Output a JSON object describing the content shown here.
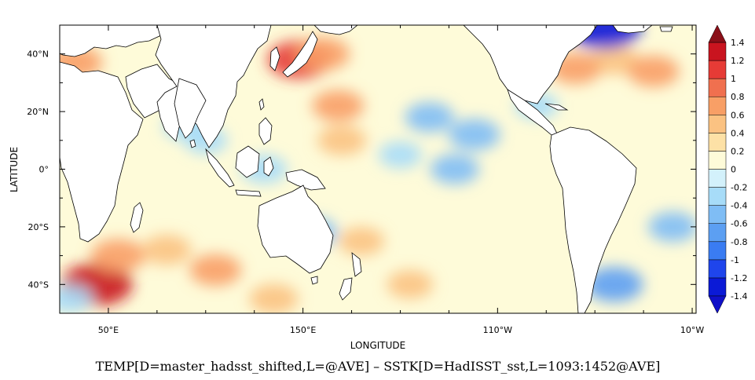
{
  "chart_data": {
    "type": "heatmap",
    "title": "TEMP[D=master_hadsst_shifted,L=@AVE] – SSTK[D=HadISST_sst,L=1093:1452@AVE]",
    "xlabel": "LONGITUDE",
    "ylabel": "LATITUDE",
    "x_ticks": [
      "50°E",
      "150°E",
      "110°W",
      "10°W"
    ],
    "y_ticks": [
      "40°N",
      "20°N",
      "0°",
      "20°S",
      "40°S"
    ],
    "x_tick_values": [
      50,
      150,
      250,
      350
    ],
    "y_tick_values": [
      40,
      20,
      0,
      -20,
      -40
    ],
    "xlim": [
      25,
      352
    ],
    "ylim": [
      -50,
      50
    ],
    "colorbar": {
      "levels": [
        -1.4,
        -1.2,
        -1,
        -0.8,
        -0.6,
        -0.4,
        -0.2,
        0,
        0.2,
        0.4,
        0.6,
        0.8,
        1,
        1.2,
        1.4
      ],
      "labels": [
        "1.4",
        "1.2",
        "1",
        "0.8",
        "0.6",
        "0.4",
        "0.2",
        "0",
        "-0.2",
        "-0.4",
        "-0.6",
        "-0.8",
        "-1",
        "-1.2",
        "-1.4"
      ],
      "colors": [
        "#0b1ad6",
        "#1f45ec",
        "#3a7cf2",
        "#5c9ff2",
        "#7fbdf5",
        "#a7dcf8",
        "#d3f1fb",
        "#fefbd9",
        "#fde1a6",
        "#fbc282",
        "#f89f66",
        "#f0704f",
        "#e63b36",
        "#c9141f"
      ],
      "under_color": "#1010c8",
      "over_color": "#8a0f18"
    },
    "anomalies": [
      {
        "lon": 148,
        "lat": 38,
        "value": 1.0
      },
      {
        "lon": 160,
        "lat": 40,
        "value": 0.7
      },
      {
        "lon": 168,
        "lat": 22,
        "value": 0.6
      },
      {
        "lon": 170,
        "lat": 10,
        "value": 0.5
      },
      {
        "lon": 310,
        "lat": 38,
        "value": 0.5
      },
      {
        "lon": 330,
        "lat": 34,
        "value": 0.6
      },
      {
        "lon": 290,
        "lat": 35,
        "value": 0.6
      },
      {
        "lon": 33,
        "lat": 37,
        "value": 0.7
      },
      {
        "lon": 44,
        "lat": -40,
        "value": 1.3
      },
      {
        "lon": 55,
        "lat": -30,
        "value": 0.7
      },
      {
        "lon": 80,
        "lat": -28,
        "value": 0.5
      },
      {
        "lon": 105,
        "lat": -35,
        "value": 0.6
      },
      {
        "lon": 135,
        "lat": -45,
        "value": 0.5
      },
      {
        "lon": 180,
        "lat": -25,
        "value": 0.4
      },
      {
        "lon": 205,
        "lat": -40,
        "value": 0.4
      },
      {
        "lon": 228,
        "lat": 0,
        "value": -0.5
      },
      {
        "lon": 215,
        "lat": 18,
        "value": -0.5
      },
      {
        "lon": 238,
        "lat": 12,
        "value": -0.6
      },
      {
        "lon": 130,
        "lat": 0,
        "value": -0.4
      },
      {
        "lon": 90,
        "lat": 15,
        "value": -0.4
      },
      {
        "lon": 155,
        "lat": -22,
        "value": -0.5
      },
      {
        "lon": 310,
        "lat": -40,
        "value": -0.8
      },
      {
        "lon": 305,
        "lat": 49,
        "value": -1.3
      },
      {
        "lon": 340,
        "lat": -20,
        "value": -0.5
      },
      {
        "lon": 100,
        "lat": 10,
        "value": -0.3
      },
      {
        "lon": 200,
        "lat": 5,
        "value": -0.3
      },
      {
        "lon": 270,
        "lat": 22,
        "value": -0.3
      },
      {
        "lon": 30,
        "lat": -45,
        "value": -0.4
      }
    ]
  }
}
